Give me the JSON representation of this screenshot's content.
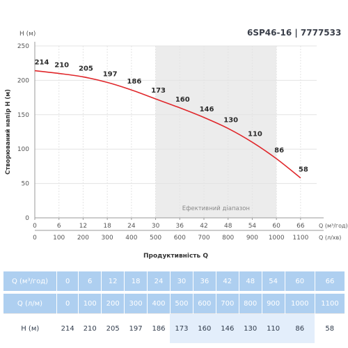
{
  "title": "6SP46-16 | 7777533",
  "chart_data": {
    "type": "line",
    "title": "6SP46-16 | 7777533",
    "y_axis_title": "H (м)",
    "ylabel": "Створюваний напір H (м)",
    "xlabel": "Продуктивність Q",
    "x_unit_top": "Q (м³/год)",
    "x_unit_bottom": "Q (л/хв)",
    "x_top": [
      0,
      6,
      12,
      18,
      24,
      30,
      36,
      42,
      48,
      54,
      60,
      66
    ],
    "x_bottom": [
      0,
      100,
      200,
      300,
      400,
      500,
      600,
      700,
      800,
      900,
      1000,
      1100
    ],
    "y_ticks": [
      0,
      50,
      100,
      150,
      200,
      250
    ],
    "ylim": [
      0,
      250
    ],
    "xlim": [
      0,
      70
    ],
    "series": [
      {
        "x": [
          0,
          6,
          12,
          18,
          24,
          30,
          36,
          42,
          48,
          54,
          60,
          66
        ],
        "values": [
          214,
          210,
          205,
          197,
          186,
          173,
          160,
          146,
          130,
          110,
          86,
          58
        ],
        "color": "#e0262a"
      }
    ],
    "efficiency_range": {
      "label": "Ефективний діапазон",
      "x_from": 30,
      "x_to": 60,
      "color": "#ececec"
    },
    "grid": true
  },
  "table": {
    "rows": [
      {
        "label": "Q (м³/год)",
        "values": [
          "0",
          "6",
          "12",
          "18",
          "24",
          "30",
          "36",
          "42",
          "48",
          "54",
          "60",
          "66"
        ]
      },
      {
        "label": "Q (л/м)",
        "values": [
          "0",
          "100",
          "200",
          "300",
          "400",
          "500",
          "600",
          "700",
          "800",
          "900",
          "1000",
          "1100"
        ]
      },
      {
        "label": "H (м)",
        "values": [
          "214",
          "210",
          "205",
          "197",
          "186",
          "173",
          "160",
          "146",
          "130",
          "110",
          "86",
          "58"
        ]
      }
    ],
    "highlight_columns": [
      5,
      6,
      7,
      8,
      9,
      10
    ]
  }
}
